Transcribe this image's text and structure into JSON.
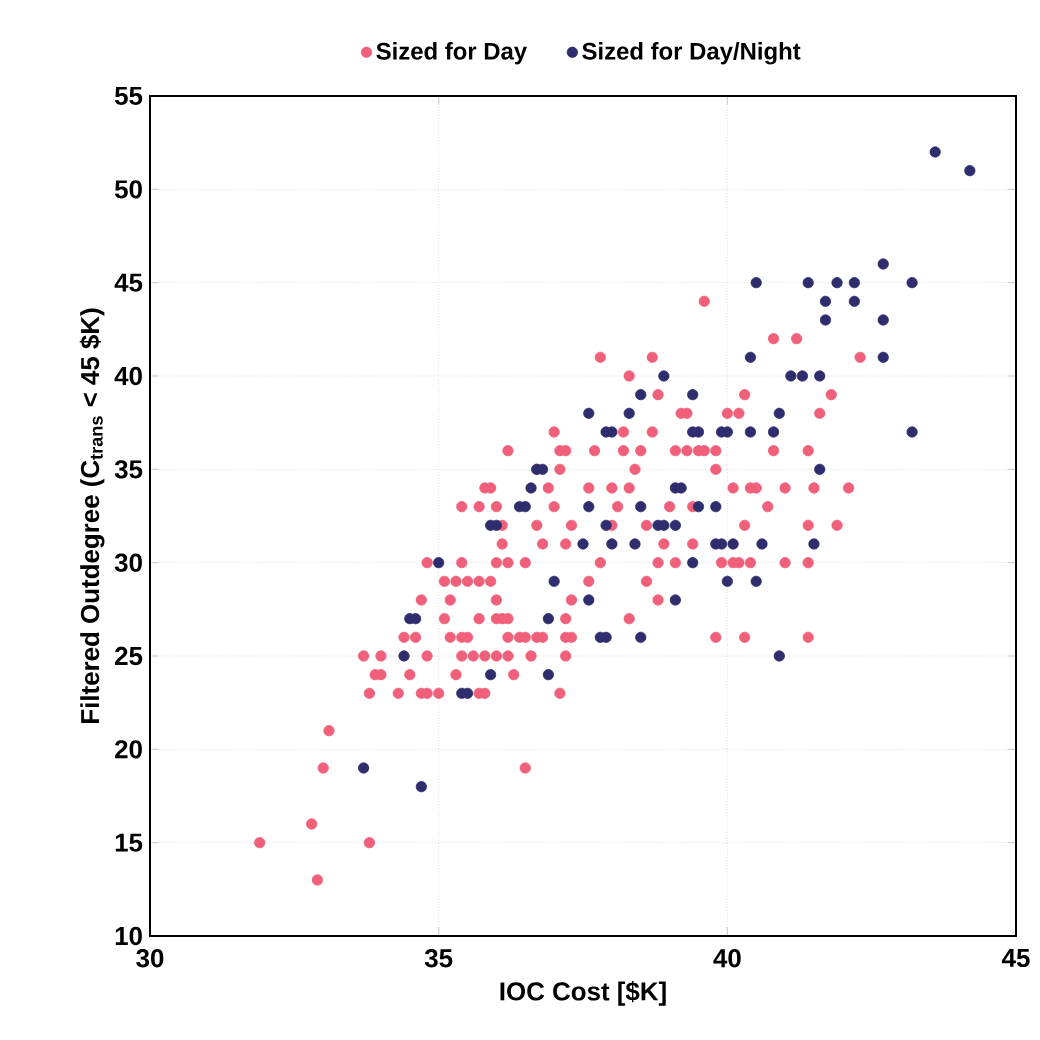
{
  "chart_data": {
    "type": "scatter",
    "xlabel": "IOC Cost [$K]",
    "ylabel": "Filtered Outdegree (C$_{trans}$ < 45 $K)",
    "xlim": [
      30,
      45
    ],
    "xticks": [
      30,
      35,
      40,
      45
    ],
    "ylim": [
      10,
      55
    ],
    "yticks": [
      10,
      15,
      20,
      25,
      30,
      35,
      40,
      45,
      50,
      55
    ],
    "grid": true,
    "legend": "top",
    "marker": "circle",
    "series": [
      {
        "name": "Sized for Day",
        "color": "#f0607a",
        "x": [
          31.9,
          32.8,
          32.9,
          33.0,
          33.1,
          33.8,
          36.5,
          33.7,
          33.8,
          33.9,
          34.0,
          34.0,
          34.3,
          34.5,
          34.4,
          34.6,
          34.7,
          34.8,
          34.7,
          34.8,
          35.0,
          34.8,
          35.1,
          35.1,
          35.2,
          35.2,
          35.4,
          35.5,
          35.3,
          35.5,
          35.7,
          35.9,
          35.4,
          35.7,
          35.4,
          35.4,
          35.6,
          35.8,
          36.0,
          36.2,
          35.3,
          35.7,
          35.7,
          35.8,
          35.8,
          36.0,
          36.0,
          36.1,
          35.9,
          36.0,
          36.2,
          36.0,
          36.1,
          36.2,
          36.1,
          36.2,
          36.2,
          36.4,
          36.5,
          36.7,
          36.8,
          36.3,
          36.5,
          36.6,
          36.7,
          36.7,
          36.8,
          36.9,
          37.0,
          37.0,
          37.1,
          37.1,
          37.2,
          37.1,
          37.2,
          37.2,
          37.3,
          37.2,
          37.2,
          37.3,
          37.3,
          37.6,
          37.6,
          37.7,
          37.8,
          37.8,
          38.0,
          38.1,
          38.0,
          38.3,
          38.2,
          38.3,
          38.2,
          38.3,
          38.4,
          38.5,
          38.6,
          38.6,
          38.7,
          38.7,
          38.8,
          38.8,
          38.8,
          38.9,
          39.0,
          39.1,
          39.2,
          39.3,
          39.3,
          39.5,
          39.6,
          39.8,
          39.4,
          39.1,
          39.4,
          39.6,
          39.8,
          39.8,
          40.0,
          40.1,
          39.9,
          40.1,
          40.2,
          40.4,
          40.2,
          40.3,
          40.3,
          40.3,
          40.4,
          40.5,
          40.7,
          40.8,
          40.8,
          41.0,
          41.0,
          41.2,
          41.4,
          41.4,
          41.4,
          41.4,
          41.5,
          41.6,
          41.8,
          41.9,
          42.1,
          42.3
        ],
        "values": [
          15,
          16,
          13,
          19,
          21,
          15,
          19,
          25,
          23,
          24,
          24,
          25,
          23,
          24,
          26,
          26,
          28,
          25,
          23,
          23,
          23,
          30,
          29,
          27,
          28,
          26,
          26,
          26,
          29,
          29,
          29,
          29,
          33,
          33,
          30,
          25,
          25,
          25,
          25,
          25,
          24,
          23,
          27,
          34,
          23,
          28,
          33,
          32,
          34,
          30,
          30,
          27,
          27,
          27,
          31,
          36,
          26,
          26,
          26,
          26,
          26,
          24,
          30,
          25,
          32,
          35,
          31,
          34,
          33,
          37,
          35,
          36,
          36,
          23,
          27,
          26,
          26,
          25,
          31,
          32,
          28,
          34,
          29,
          36,
          41,
          30,
          32,
          33,
          34,
          34,
          36,
          40,
          37,
          27,
          35,
          36,
          32,
          29,
          41,
          37,
          28,
          30,
          39,
          31,
          33,
          36,
          38,
          38,
          36,
          36,
          44,
          36,
          33,
          30,
          31,
          36,
          35,
          26,
          38,
          34,
          30,
          30,
          30,
          30,
          38,
          39,
          26,
          32,
          34,
          34,
          33,
          36,
          42,
          30,
          34,
          42,
          36,
          26,
          30,
          32,
          34,
          38,
          39,
          32,
          34,
          41
        ]
      },
      {
        "name": "Sized for Day/Night",
        "color": "#2e2e6e",
        "x": [
          33.7,
          34.7,
          34.4,
          34.5,
          34.6,
          35.0,
          35.4,
          35.5,
          35.9,
          35.9,
          36.0,
          36.4,
          36.5,
          36.6,
          36.7,
          36.8,
          36.9,
          36.9,
          37.0,
          37.5,
          37.6,
          37.6,
          37.6,
          37.8,
          37.9,
          37.9,
          38.0,
          37.9,
          38.0,
          38.3,
          38.4,
          38.5,
          38.5,
          38.5,
          38.9,
          38.8,
          38.9,
          39.1,
          39.1,
          39.2,
          39.1,
          39.4,
          39.4,
          39.4,
          39.5,
          39.5,
          39.8,
          39.9,
          40.1,
          39.8,
          39.9,
          40.0,
          40.0,
          40.4,
          40.4,
          40.8,
          40.5,
          40.5,
          40.6,
          40.9,
          40.9,
          41.1,
          41.3,
          41.4,
          41.6,
          41.5,
          41.6,
          41.7,
          41.7,
          41.9,
          42.2,
          42.2,
          42.7,
          42.7,
          42.7,
          43.2,
          43.2,
          43.6,
          44.2
        ],
        "values": [
          19,
          18,
          25,
          27,
          27,
          30,
          23,
          23,
          24,
          32,
          32,
          33,
          33,
          34,
          35,
          35,
          27,
          24,
          29,
          31,
          38,
          33,
          28,
          26,
          26,
          37,
          37,
          32,
          31,
          38,
          31,
          39,
          26,
          33,
          40,
          32,
          32,
          32,
          34,
          34,
          28,
          30,
          39,
          37,
          37,
          33,
          31,
          31,
          31,
          33,
          37,
          37,
          29,
          41,
          37,
          37,
          45,
          29,
          31,
          25,
          38,
          40,
          40,
          45,
          35,
          31,
          40,
          43,
          44,
          45,
          44,
          45,
          46,
          41,
          43,
          45,
          37,
          52,
          51
        ]
      }
    ]
  }
}
